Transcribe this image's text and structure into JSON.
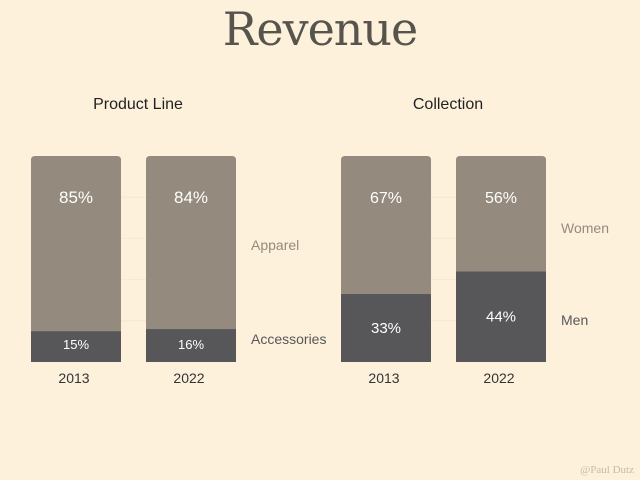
{
  "title": "Revenue",
  "credit": "@Paul Dutz",
  "colors": {
    "background": "#fdf1dc",
    "light": "#948b7e",
    "dark": "#57575a",
    "gridline": "#f6e8cf",
    "muted_label": "#948b7e",
    "dark_label": "#57575a"
  },
  "chart_data": [
    {
      "type": "bar",
      "stacked": true,
      "title": "Product Line",
      "categories": [
        "2013",
        "2022"
      ],
      "ylim": [
        0,
        100
      ],
      "series": [
        {
          "name": "Accessories",
          "values": [
            15,
            16
          ],
          "labels": [
            "15%",
            "16%"
          ],
          "tone": "dark"
        },
        {
          "name": "Apparel",
          "values": [
            85,
            84
          ],
          "labels": [
            "85%",
            "84%"
          ],
          "tone": "light"
        }
      ]
    },
    {
      "type": "bar",
      "stacked": true,
      "title": "Collection",
      "categories": [
        "2013",
        "2022"
      ],
      "ylim": [
        0,
        100
      ],
      "series": [
        {
          "name": "Men",
          "values": [
            33,
            44
          ],
          "labels": [
            "33%",
            "44%"
          ],
          "tone": "dark"
        },
        {
          "name": "Women",
          "values": [
            67,
            56
          ],
          "labels": [
            "67%",
            "56%"
          ],
          "tone": "light"
        }
      ]
    }
  ]
}
